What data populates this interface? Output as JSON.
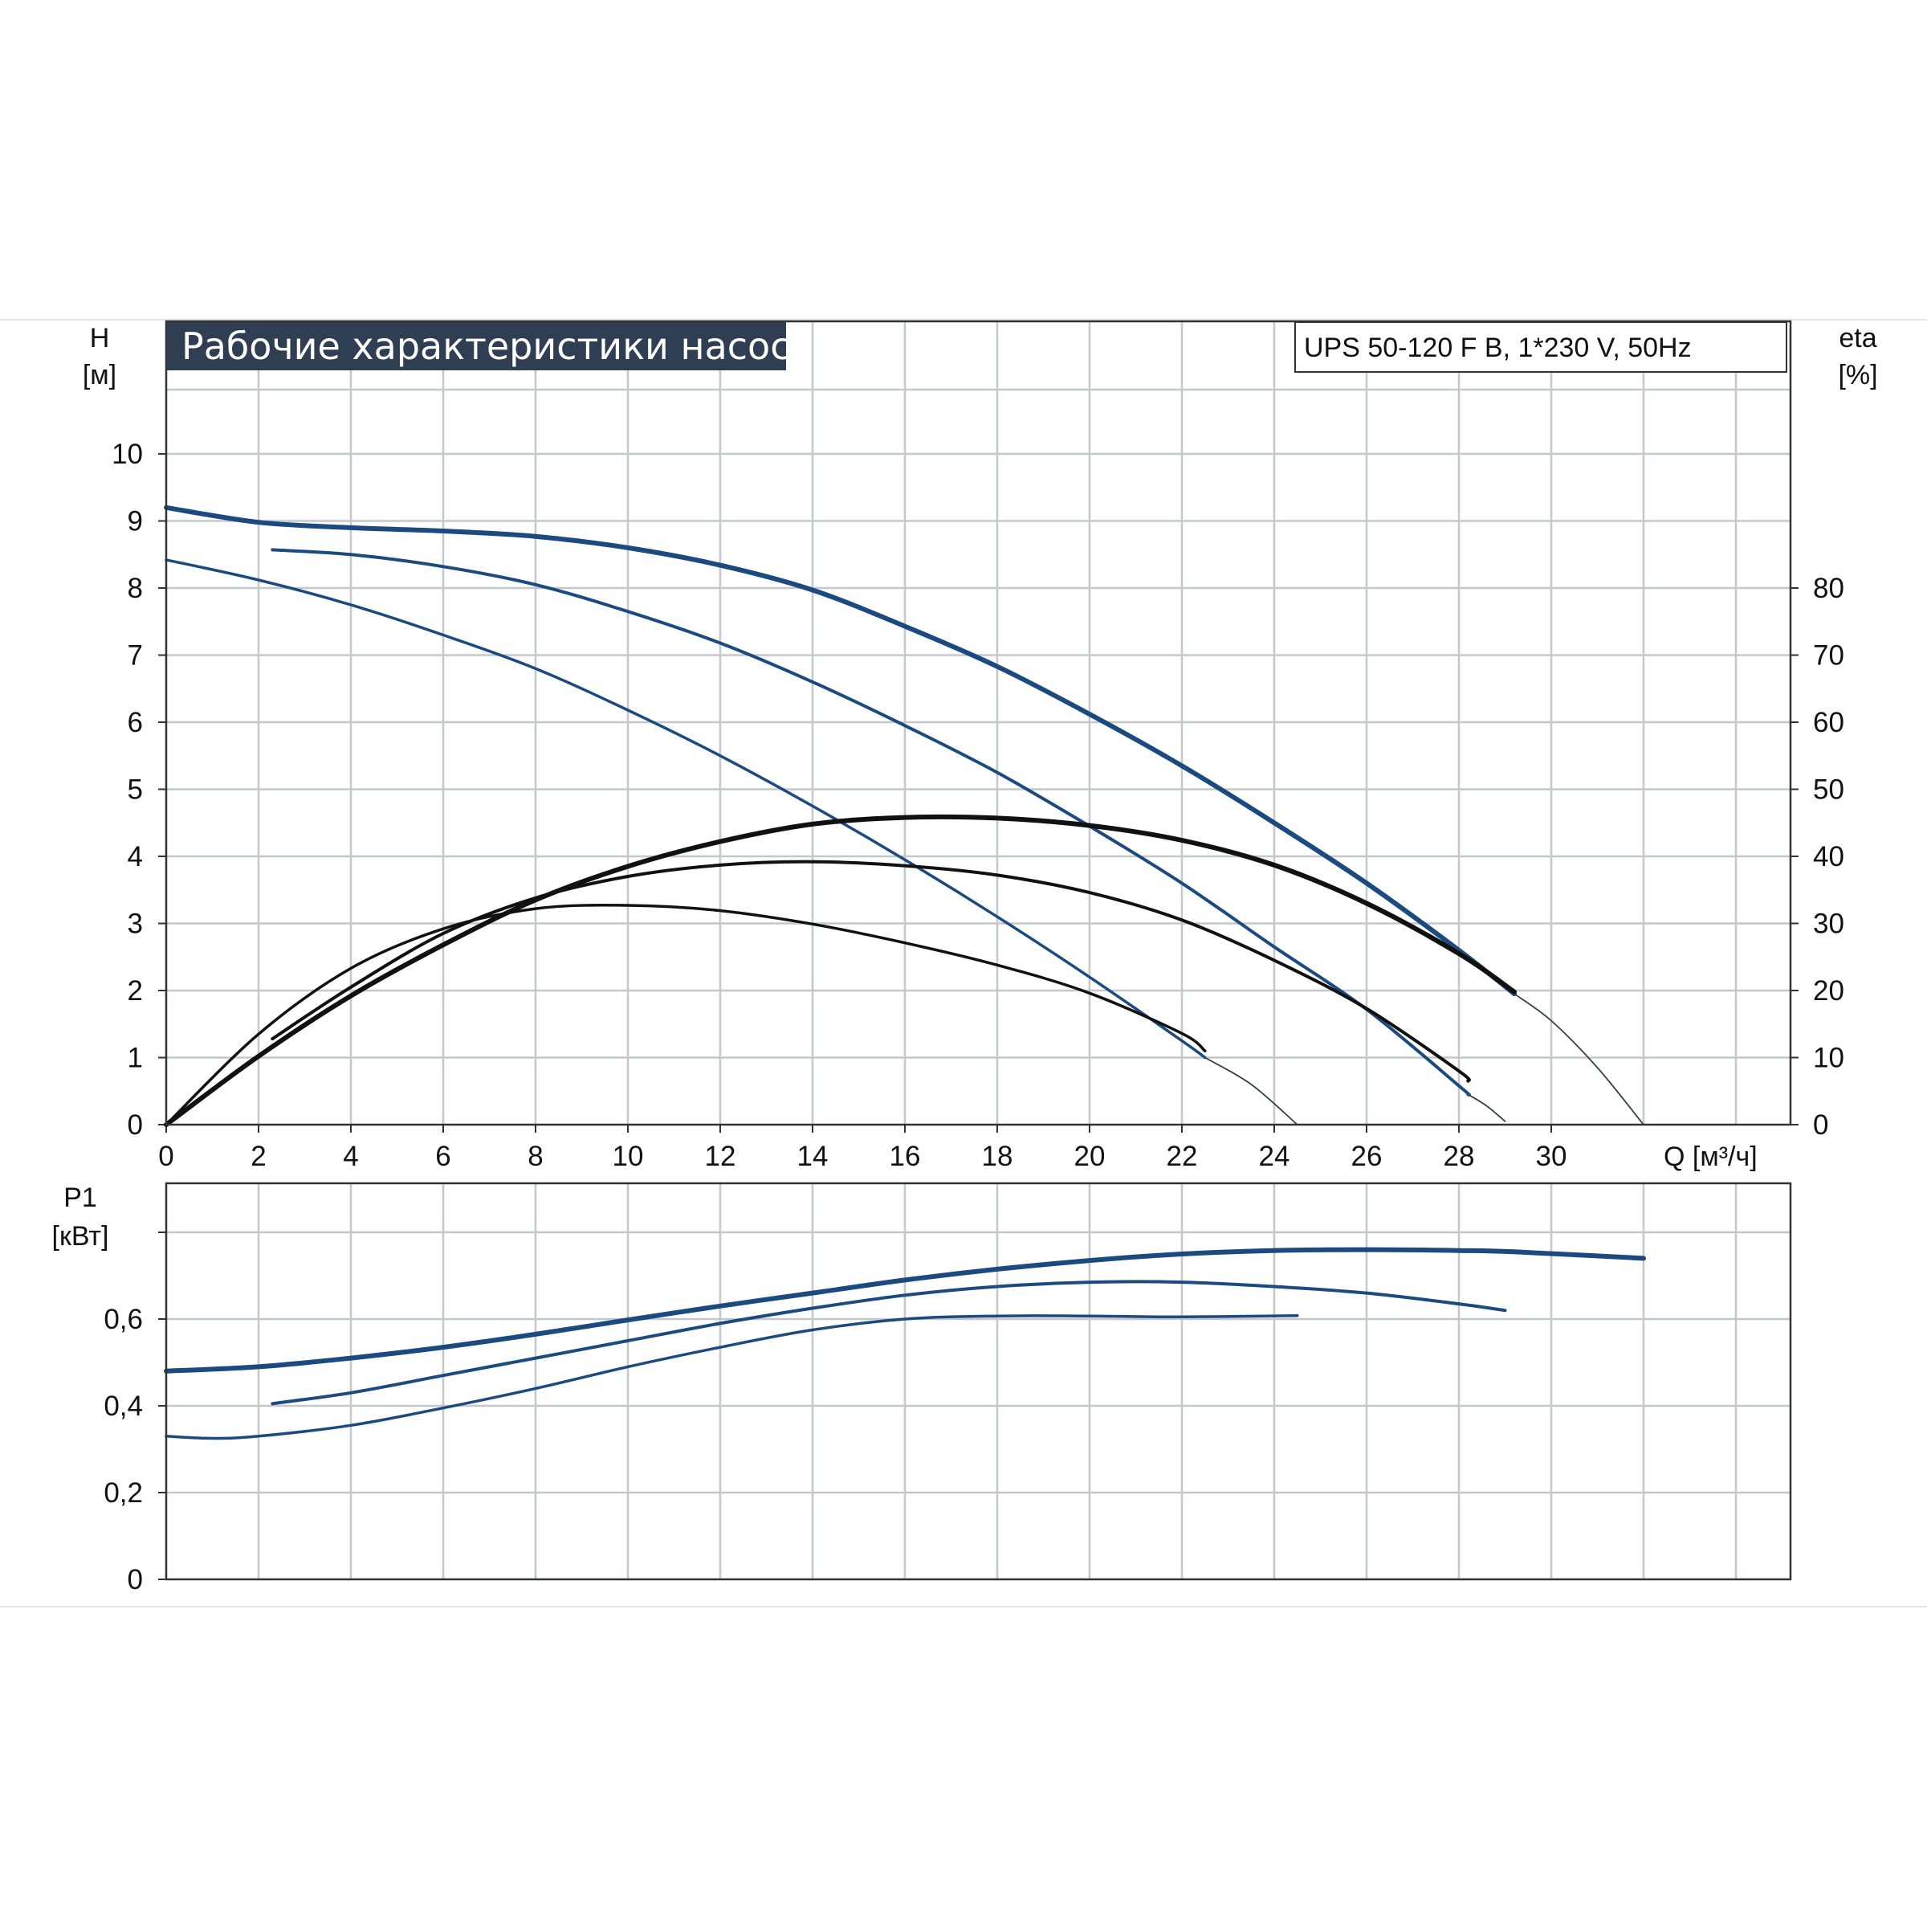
{
  "title": "Рабочие характеристики насоса",
  "model": "UPS 50-120 F B, 1*230 V, 50Hz",
  "colors": {
    "title_bg": "#2f3e52",
    "grid": "#c4c7cc",
    "frame": "#333333",
    "head_curve": "#1b4a80",
    "eff_curve": "#111111",
    "power_curve": "#1b4a80"
  },
  "chart_data": [
    {
      "type": "line",
      "name": "head-efficiency",
      "xlabel": "Q [м³/ч]",
      "ylabel_left": [
        "H",
        "[м]"
      ],
      "ylabel_right": [
        "eta",
        "[%]"
      ],
      "xlim": [
        0,
        35
      ],
      "ylim_left": [
        0,
        11
      ],
      "ylim_right": [
        0,
        110
      ],
      "x_ticks": [
        "0",
        "2",
        "4",
        "6",
        "8",
        "10",
        "12",
        "14",
        "16",
        "18",
        "20",
        "22",
        "24",
        "26",
        "28",
        "30"
      ],
      "y_left_ticks": [
        "0",
        "1",
        "2",
        "3",
        "4",
        "5",
        "6",
        "7",
        "8",
        "9",
        "10"
      ],
      "y_right_ticks": [
        "0",
        "10",
        "20",
        "30",
        "40",
        "50",
        "60",
        "70",
        "80"
      ],
      "grid": true,
      "head_series": [
        {
          "x": [
            0,
            2,
            4,
            6,
            8,
            10,
            12,
            14,
            16,
            18,
            20,
            22,
            24,
            26,
            28,
            29.2
          ],
          "y": [
            9.2,
            8.98,
            8.9,
            8.85,
            8.77,
            8.6,
            8.34,
            7.97,
            7.43,
            6.83,
            6.12,
            5.35,
            4.5,
            3.6,
            2.6,
            1.95
          ]
        },
        {
          "x": [
            2.3,
            4,
            6,
            8,
            10,
            12,
            14,
            16,
            18,
            20,
            22,
            24,
            26,
            28,
            28.2
          ],
          "y": [
            8.57,
            8.5,
            8.32,
            8.05,
            7.65,
            7.18,
            6.6,
            5.95,
            5.25,
            4.45,
            3.6,
            2.65,
            1.72,
            0.58,
            0.45
          ]
        },
        {
          "x": [
            0,
            2,
            4,
            6,
            8,
            10,
            12,
            14,
            16,
            18,
            20,
            22,
            22.5
          ],
          "y": [
            8.42,
            8.12,
            7.75,
            7.3,
            6.8,
            6.18,
            5.5,
            4.75,
            3.95,
            3.1,
            2.2,
            1.25,
            1.0
          ]
        }
      ],
      "efficiency_series": [
        {
          "x": [
            0,
            2,
            4,
            6,
            8,
            10,
            12,
            14,
            16,
            18,
            20,
            22,
            24,
            26,
            28,
            29.2
          ],
          "y": [
            0,
            10.2,
            19.2,
            26.8,
            33.5,
            38.5,
            42.2,
            44.8,
            45.8,
            45.7,
            44.6,
            42.4,
            38.7,
            33.0,
            25.5,
            19.8
          ]
        },
        {
          "x": [
            2.3,
            4,
            6,
            8,
            10,
            12,
            14,
            16,
            18,
            20,
            22,
            24,
            26,
            28,
            28.2
          ],
          "y": [
            12.8,
            20.5,
            28.5,
            33.8,
            37.0,
            38.7,
            39.2,
            38.6,
            37.2,
            34.6,
            30.5,
            24.5,
            17.3,
            8.0,
            6.5
          ]
        },
        {
          "x": [
            0,
            2,
            4,
            6,
            8,
            10,
            12,
            14,
            16,
            18,
            20,
            22,
            22.5
          ],
          "y": [
            0,
            13.5,
            23.3,
            29.2,
            32.2,
            32.7,
            31.9,
            29.9,
            27.1,
            23.8,
            19.6,
            13.6,
            11.0
          ]
        }
      ],
      "extension_curves": [
        {
          "x": [
            29.2,
            30,
            31,
            32
          ],
          "y": [
            1.95,
            1.55,
            0.85,
            0
          ]
        },
        {
          "x": [
            28.2,
            28.6,
            29
          ],
          "y": [
            0.45,
            0.28,
            0.05
          ]
        },
        {
          "x": [
            22.5,
            23.5,
            24.5
          ],
          "y": [
            1.0,
            0.6,
            0
          ]
        }
      ]
    },
    {
      "type": "line",
      "name": "power",
      "ylabel": [
        "P1",
        "[кВт]"
      ],
      "xlim": [
        0,
        35
      ],
      "ylim": [
        0,
        0.9
      ],
      "y_ticks": [
        "0",
        "0,2",
        "0,4",
        "0,6"
      ],
      "y_tick_values": [
        0,
        0.2,
        0.4,
        0.6
      ],
      "grid": true,
      "series": [
        {
          "x": [
            0,
            2,
            4,
            6,
            8,
            10,
            12,
            14,
            16,
            18,
            20,
            22,
            24,
            26,
            28,
            29.2,
            32
          ],
          "y": [
            0.48,
            0.49,
            0.51,
            0.535,
            0.565,
            0.598,
            0.63,
            0.66,
            0.69,
            0.715,
            0.735,
            0.75,
            0.758,
            0.76,
            0.758,
            0.755,
            0.74
          ]
        },
        {
          "x": [
            2.3,
            4,
            6,
            8,
            10,
            12,
            14,
            16,
            18,
            20,
            22,
            24,
            26,
            28,
            29
          ],
          "y": [
            0.405,
            0.43,
            0.47,
            0.51,
            0.55,
            0.59,
            0.625,
            0.655,
            0.675,
            0.685,
            0.685,
            0.675,
            0.66,
            0.635,
            0.62
          ]
        },
        {
          "x": [
            0,
            1,
            2,
            4,
            6,
            8,
            10,
            12,
            14,
            16,
            18,
            20,
            22,
            24.5
          ],
          "y": [
            0.33,
            0.325,
            0.33,
            0.355,
            0.395,
            0.44,
            0.49,
            0.535,
            0.575,
            0.6,
            0.607,
            0.607,
            0.605,
            0.608
          ]
        }
      ]
    }
  ]
}
